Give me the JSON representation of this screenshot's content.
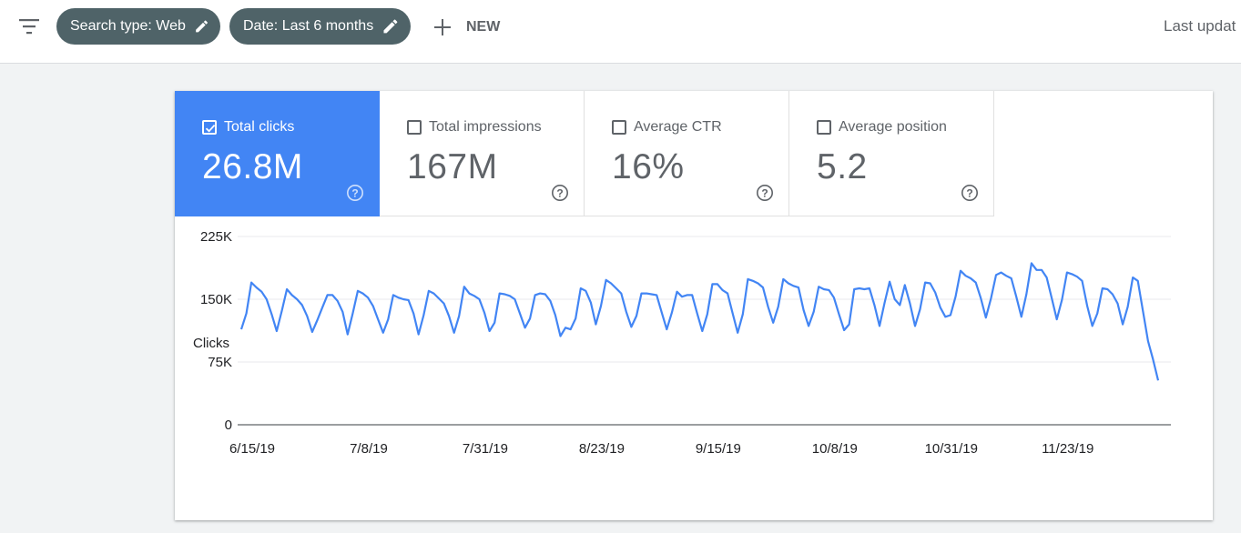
{
  "toolbar": {
    "filter_icon": "filter-list-icon",
    "chips": [
      {
        "label": "Search type: Web",
        "icon": "edit-pencil-icon"
      },
      {
        "label": "Date: Last 6 months",
        "icon": "edit-pencil-icon"
      }
    ],
    "new_label": "NEW",
    "new_icon": "plus-icon",
    "last_updated": "Last updat"
  },
  "metrics": [
    {
      "label": "Total clicks",
      "value": "26.8M",
      "checked": true
    },
    {
      "label": "Total impressions",
      "value": "167M",
      "checked": false
    },
    {
      "label": "Average CTR",
      "value": "16%",
      "checked": false
    },
    {
      "label": "Average position",
      "value": "5.2",
      "checked": false
    }
  ],
  "colors": {
    "accent": "#4285f4",
    "chip_bg": "#4f6368",
    "line": "#4285f4",
    "grid": "#e8eaed"
  },
  "chart_data": {
    "type": "line",
    "ylabel": "Clicks",
    "ylim": [
      0,
      225000
    ],
    "y_ticks": [
      0,
      75000,
      150000,
      225000
    ],
    "y_tick_labels": [
      "0",
      "75K",
      "150K",
      "225K"
    ],
    "x_tick_labels": [
      "6/15/19",
      "7/8/19",
      "7/31/19",
      "8/23/19",
      "9/15/19",
      "10/8/19",
      "10/31/19",
      "11/23/19"
    ],
    "x_tick_index": [
      0,
      23,
      46,
      69,
      92,
      115,
      138,
      161
    ],
    "grid": true,
    "series": [
      {
        "values": [
          114000,
          133000,
          170000,
          164000,
          159000,
          150000,
          132000,
          112000,
          136000,
          162000,
          155000,
          150000,
          143000,
          130000,
          111000,
          125000,
          140000,
          155000,
          155000,
          148000,
          135000,
          108000,
          133000,
          160000,
          157000,
          152000,
          142000,
          126000,
          110000,
          126000,
          155000,
          152000,
          150000,
          149000,
          133000,
          108000,
          131000,
          160000,
          157000,
          151000,
          145000,
          130000,
          110000,
          130000,
          165000,
          157000,
          154000,
          150000,
          134000,
          112000,
          122000,
          157000,
          156000,
          154000,
          150000,
          133000,
          116000,
          127000,
          155000,
          157000,
          156000,
          148000,
          131000,
          106000,
          116000,
          114000,
          127000,
          163000,
          160000,
          146000,
          120000,
          142000,
          173000,
          169000,
          163000,
          157000,
          135000,
          117000,
          130000,
          157000,
          157000,
          156000,
          155000,
          134000,
          114000,
          134000,
          159000,
          153000,
          155000,
          155000,
          133000,
          112000,
          132000,
          168000,
          168000,
          161000,
          157000,
          133000,
          110000,
          132000,
          174000,
          172000,
          169000,
          164000,
          141000,
          122000,
          141000,
          174000,
          169000,
          166000,
          164000,
          137000,
          118000,
          135000,
          165000,
          162000,
          161000,
          152000,
          132000,
          113000,
          120000,
          162000,
          163000,
          162000,
          163000,
          143000,
          118000,
          146000,
          171000,
          150000,
          143000,
          167000,
          145000,
          118000,
          138000,
          170000,
          169000,
          158000,
          140000,
          129000,
          131000,
          153000,
          184000,
          178000,
          175000,
          170000,
          151000,
          128000,
          151000,
          179000,
          182000,
          178000,
          175000,
          153000,
          129000,
          156000,
          193000,
          185000,
          185000,
          176000,
          151000,
          126000,
          149000,
          182000,
          180000,
          177000,
          172000,
          142000,
          118000,
          133000,
          163000,
          162000,
          156000,
          145000,
          120000,
          141000,
          176000,
          172000,
          136000,
          100000,
          78000,
          53000
        ]
      }
    ]
  }
}
